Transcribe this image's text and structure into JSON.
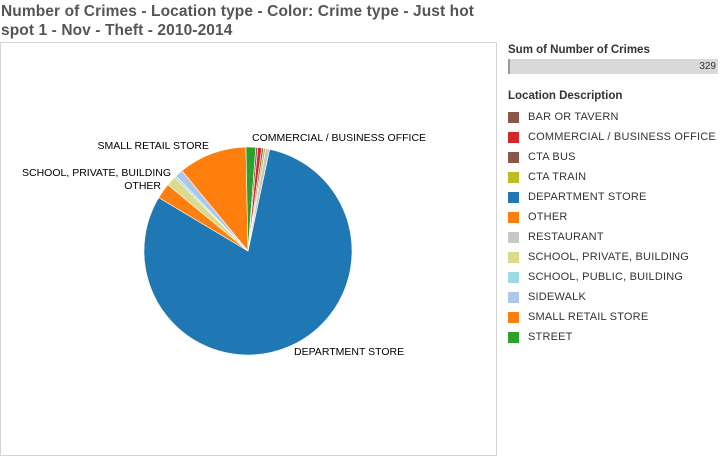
{
  "title": "Number of Crimes - Location type  - Color: Crime type - Just hot spot 1 - Nov - Theft - 2010-2014",
  "size_legend": {
    "heading": "Sum of Number of Crimes",
    "value": "329",
    "fill_fraction": 0.005
  },
  "color_legend": {
    "heading": "Location Description",
    "items": [
      {
        "label": "BAR OR TAVERN",
        "color": "#8c564b"
      },
      {
        "label": "COMMERCIAL / BUSINESS OFFICE",
        "color": "#d62728"
      },
      {
        "label": "CTA BUS",
        "color": "#8c564b"
      },
      {
        "label": "CTA TRAIN",
        "color": "#bcbd22"
      },
      {
        "label": "DEPARTMENT STORE",
        "color": "#1f77b4"
      },
      {
        "label": "OTHER",
        "color": "#ff7f0e"
      },
      {
        "label": "RESTAURANT",
        "color": "#c7c7c7"
      },
      {
        "label": "SCHOOL, PRIVATE, BUILDING",
        "color": "#dbdb8d"
      },
      {
        "label": "SCHOOL, PUBLIC, BUILDING",
        "color": "#9edae5"
      },
      {
        "label": "SIDEWALK",
        "color": "#aec7e8"
      },
      {
        "label": "SMALL RETAIL STORE",
        "color": "#ff7f0e"
      },
      {
        "label": "STREET",
        "color": "#2ca02c"
      }
    ]
  },
  "chart_data": {
    "type": "pie",
    "title": "Number of Crimes - Location type  - Color: Crime type - Just hot spot 1 - Nov - Theft - 2010-2014",
    "measure": "Sum of Number of Crimes",
    "color_field": "Location Description",
    "slices": [
      {
        "label": "BAR OR TAVERN",
        "value": 1,
        "color": "#8c564b",
        "labeled": false
      },
      {
        "label": "COMMERCIAL / BUSINESS OFFICE",
        "value": 2,
        "color": "#d62728",
        "labeled": true
      },
      {
        "label": "CTA BUS",
        "value": 1,
        "color": "#8c564b",
        "labeled": false
      },
      {
        "label": "CTA TRAIN",
        "value": 1,
        "color": "#bcbd22",
        "labeled": false
      },
      {
        "label": "DEPARTMENT STORE",
        "value": 264,
        "color": "#1f77b4",
        "labeled": true
      },
      {
        "label": "OTHER",
        "value": 8,
        "color": "#ff7f0e",
        "labeled": true
      },
      {
        "label": "RESTAURANT",
        "value": 2,
        "color": "#c7c7c7",
        "labeled": false
      },
      {
        "label": "SCHOOL, PRIVATE, BUILDING",
        "value": 5,
        "color": "#dbdb8d",
        "labeled": true
      },
      {
        "label": "SCHOOL, PUBLIC, BUILDING",
        "value": 1,
        "color": "#9edae5",
        "labeled": false
      },
      {
        "label": "SIDEWALK",
        "value": 4,
        "color": "#aec7e8",
        "labeled": false
      },
      {
        "label": "SMALL RETAIL STORE",
        "value": 35,
        "color": "#ff7f0e",
        "labeled": true
      },
      {
        "label": "STREET",
        "value": 5,
        "color": "#2ca02c",
        "labeled": false
      }
    ],
    "total": 329,
    "start_order": [
      "DEPARTMENT STORE",
      "OTHER",
      "SCHOOL, PRIVATE, BUILDING",
      "SCHOOL, PUBLIC, BUILDING",
      "SIDEWALK",
      "SMALL RETAIL STORE",
      "STREET",
      "BAR OR TAVERN",
      "COMMERCIAL / BUSINESS OFFICE",
      "CTA BUS",
      "CTA TRAIN",
      "RESTAURANT"
    ]
  }
}
